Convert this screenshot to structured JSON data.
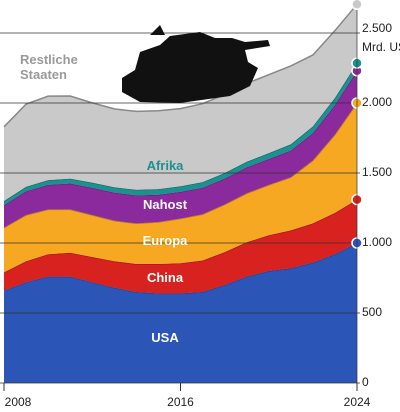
{
  "chart_data": {
    "type": "stacked_area",
    "y_label": "Mrd. US-$",
    "x": [
      2008,
      2009,
      2010,
      2011,
      2012,
      2013,
      2014,
      2015,
      2016,
      2017,
      2018,
      2019,
      2020,
      2021,
      2022,
      2023,
      2024
    ],
    "xlim": [
      2008,
      2024
    ],
    "xticks": [
      2008,
      2016,
      2024
    ],
    "ylim": [
      0,
      2750
    ],
    "yticks": [
      0,
      500,
      {
        "value": 1000,
        "label": "1.000"
      },
      {
        "value": 1500,
        "label": "1.500"
      },
      {
        "value": 2000,
        "label": "2.000"
      },
      {
        "value": 2500,
        "label": "2.500"
      }
    ],
    "grid": true,
    "series": [
      {
        "name": "USA",
        "color": "#2c55b8",
        "values": [
          660,
          720,
          760,
          760,
          720,
          680,
          650,
          640,
          640,
          650,
          700,
          760,
          800,
          820,
          860,
          920,
          1000
        ]
      },
      {
        "name": "China",
        "color": "#d8221f",
        "values": [
          130,
          150,
          160,
          170,
          180,
          190,
          200,
          210,
          215,
          225,
          235,
          245,
          255,
          270,
          280,
          295,
          310
        ]
      },
      {
        "name": "Europa",
        "color": "#f7a823",
        "values": [
          320,
          330,
          320,
          310,
          300,
          290,
          290,
          300,
          320,
          330,
          340,
          350,
          360,
          380,
          450,
          560,
          690
        ]
      },
      {
        "name": "Nahost",
        "color": "#8a2a9c",
        "values": [
          160,
          170,
          175,
          185,
          195,
          200,
          200,
          195,
          190,
          190,
          185,
          185,
          185,
          190,
          195,
          210,
          230
        ]
      },
      {
        "name": "Afrika",
        "color": "#1b9290",
        "values": [
          30,
          32,
          34,
          35,
          36,
          38,
          40,
          40,
          40,
          40,
          40,
          40,
          42,
          45,
          48,
          52,
          55
        ]
      },
      {
        "name": "Restliche Staaten",
        "color": "#c9c9c9",
        "values": [
          530,
          590,
          600,
          590,
          570,
          560,
          560,
          560,
          555,
          560,
          560,
          560,
          560,
          560,
          510,
          480,
          420
        ]
      }
    ]
  }
}
